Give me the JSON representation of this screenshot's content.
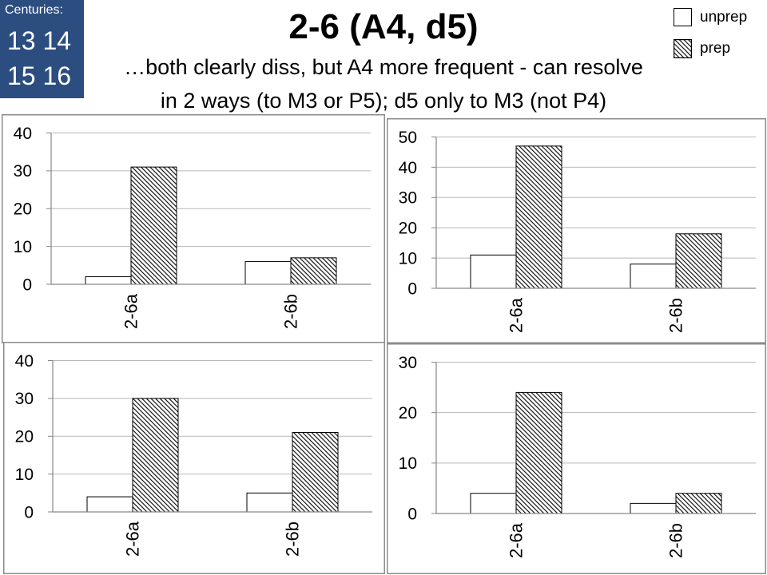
{
  "centuries": {
    "label": "Centuries:",
    "line1": "13 14",
    "line2": "15 16"
  },
  "title": "2-6 (A4, d5)",
  "subtitle": {
    "line1": "…both clearly diss, but A4 more frequent - can resolve",
    "line2": "in 2 ways (to M3 or P5); d5 only to M3 (not P4)"
  },
  "legend": {
    "position": "top-right",
    "items": [
      {
        "label": "unprep",
        "style": "white"
      },
      {
        "label": "prep",
        "style": "diagonal-hatch"
      }
    ]
  },
  "colors": {
    "centuries_background": "#2c4d7f",
    "centuries_text": "#ffffff",
    "bar_outline": "#000000",
    "unprep_fill": "#ffffff",
    "prep_hatch": "#000000",
    "gridline": "#b8b8b8",
    "axis": "#868686",
    "frame": "#8c8c8c"
  },
  "chart_data": [
    {
      "type": "bar",
      "categories": [
        "2-6a",
        "2-6b"
      ],
      "series": [
        {
          "name": "unprep",
          "values": [
            2,
            6
          ]
        },
        {
          "name": "prep",
          "values": [
            31,
            7
          ]
        }
      ],
      "ylim": [
        0,
        40
      ],
      "yticks": [
        0,
        10,
        20,
        30,
        40
      ],
      "grid": true
    },
    {
      "type": "bar",
      "categories": [
        "2-6a",
        "2-6b"
      ],
      "series": [
        {
          "name": "unprep",
          "values": [
            11,
            8
          ]
        },
        {
          "name": "prep",
          "values": [
            47,
            18
          ]
        }
      ],
      "ylim": [
        0,
        50
      ],
      "yticks": [
        0,
        10,
        20,
        30,
        40,
        50
      ],
      "grid": true
    },
    {
      "type": "bar",
      "categories": [
        "2-6a",
        "2-6b"
      ],
      "series": [
        {
          "name": "unprep",
          "values": [
            4,
            5
          ]
        },
        {
          "name": "prep",
          "values": [
            30,
            21
          ]
        }
      ],
      "ylim": [
        0,
        40
      ],
      "yticks": [
        0,
        10,
        20,
        30,
        40
      ],
      "grid": true
    },
    {
      "type": "bar",
      "categories": [
        "2-6a",
        "2-6b"
      ],
      "series": [
        {
          "name": "unprep",
          "values": [
            4,
            2
          ]
        },
        {
          "name": "prep",
          "values": [
            24,
            4
          ]
        }
      ],
      "ylim": [
        0,
        30
      ],
      "yticks": [
        0,
        10,
        20,
        30
      ],
      "grid": true
    }
  ]
}
